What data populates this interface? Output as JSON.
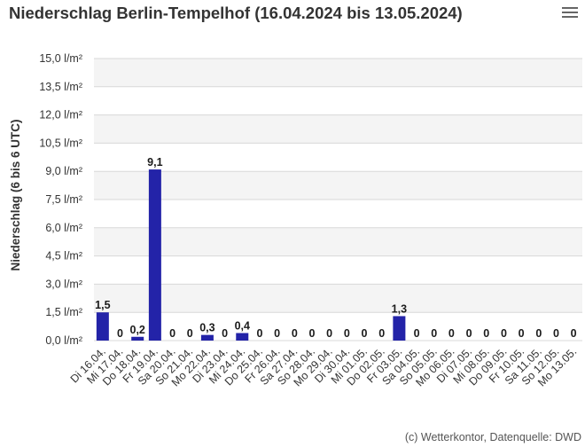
{
  "title": "Niederschlag Berlin-Tempelhof (16.04.2024 bis 13.05.2024)",
  "menu_icon": "hamburger-menu-icon",
  "credits": "(c) Wetterkontor, Datenquelle: DWD",
  "colors": {
    "bar": "#2323a8",
    "band": "#f4f4f4",
    "grid": "#d8d8d8"
  },
  "chart_data": {
    "type": "bar",
    "title": "Niederschlag Berlin-Tempelhof (16.04.2024 bis 13.05.2024)",
    "xlabel": "",
    "ylabel": "Niederschlag (6 bis 6 UTC)",
    "ylim": [
      0,
      15
    ],
    "yticks": [
      "0,0 l/m²",
      "1,5 l/m²",
      "3,0 l/m²",
      "4,5 l/m²",
      "6,0 l/m²",
      "7,5 l/m²",
      "9,0 l/m²",
      "10,5 l/m²",
      "12,0 l/m²",
      "13,5 l/m²",
      "15,0 l/m²"
    ],
    "categories": [
      "Di 16.04.",
      "Mi 17.04.",
      "Do 18.04.",
      "Fr 19.04.",
      "Sa 20.04.",
      "So 21.04.",
      "Mo 22.04.",
      "Di 23.04.",
      "Mi 24.04.",
      "Do 25.04.",
      "Fr 26.04.",
      "Sa 27.04.",
      "So 28.04.",
      "Mo 29.04.",
      "Di 30.04.",
      "Mi 01.05.",
      "Do 02.05.",
      "Fr 03.05.",
      "Sa 04.05.",
      "So 05.05.",
      "Mo 06.05.",
      "Di 07.05.",
      "Mi 08.05.",
      "Do 09.05.",
      "Fr 10.05.",
      "Sa 11.05.",
      "So 12.05.",
      "Mo 13.05."
    ],
    "values": [
      1.5,
      0,
      0.2,
      9.1,
      0,
      0,
      0.3,
      0,
      0.4,
      0,
      0,
      0,
      0,
      0,
      0,
      0,
      0,
      1.3,
      0,
      0,
      0,
      0,
      0,
      0,
      0,
      0,
      0,
      0
    ],
    "data_labels": [
      "1,5",
      "0",
      "0,2",
      "9,1",
      "0",
      "0",
      "0,3",
      "0",
      "0,4",
      "0",
      "0",
      "0",
      "0",
      "0",
      "0",
      "0",
      "0",
      "1,3",
      "0",
      "0",
      "0",
      "0",
      "0",
      "0",
      "0",
      "0",
      "0",
      "0"
    ],
    "grid": true,
    "legend": "none"
  }
}
